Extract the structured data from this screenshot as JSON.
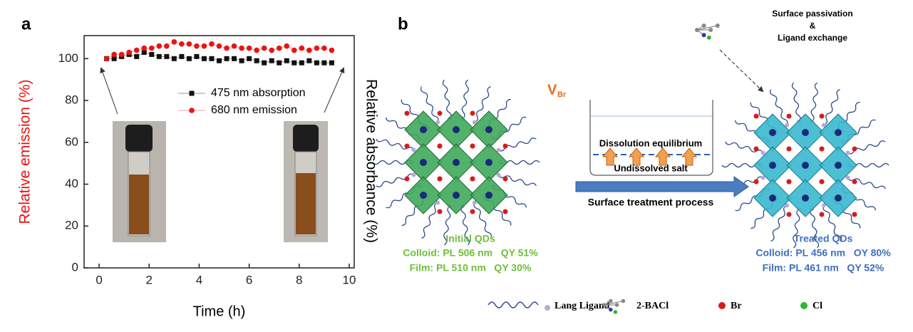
{
  "panel_labels": [
    "a",
    "b"
  ],
  "chart_data": {
    "type": "line",
    "xlabel": "Time (h)",
    "ylabel": "Relative emission (%)",
    "y2label": "Relative absorbance (%)",
    "xlim": [
      -0.6,
      10.2
    ],
    "ylim": [
      0,
      111
    ],
    "xticks": [
      0,
      2,
      4,
      6,
      8,
      10
    ],
    "yticks": [
      0,
      20,
      40,
      60,
      80,
      100
    ],
    "x": [
      0.3,
      0.6,
      0.9,
      1.2,
      1.5,
      1.8,
      2.1,
      2.4,
      2.7,
      3.0,
      3.3,
      3.6,
      3.9,
      4.2,
      4.5,
      4.8,
      5.1,
      5.4,
      5.7,
      6.0,
      6.3,
      6.6,
      6.9,
      7.2,
      7.5,
      7.8,
      8.1,
      8.4,
      8.7,
      9.0,
      9.3
    ],
    "series": [
      {
        "name": "475 nm absorption",
        "color": "#111111",
        "line_color": "#999999",
        "marker": "square",
        "values": [
          100,
          100,
          101,
          102,
          101,
          103,
          102,
          101,
          101,
          100,
          101,
          100,
          101,
          100,
          100,
          99,
          100,
          100,
          99,
          100,
          99,
          98,
          99,
          98,
          99,
          98,
          98,
          99,
          98,
          98,
          98
        ]
      },
      {
        "name": "680 nm emission",
        "color": "#ee1111",
        "line_color": "#f4a0a0",
        "marker": "circle",
        "values": [
          100,
          102,
          102,
          103,
          104,
          105,
          105,
          106,
          106,
          108,
          107,
          107,
          106,
          106,
          107,
          106,
          105,
          106,
          105,
          105,
          104,
          105,
          104,
          105,
          106,
          104,
          105,
          104,
          105,
          105,
          104
        ]
      }
    ],
    "ylabel_color": "#ee1111"
  },
  "diagram": {
    "vacancy_label": {
      "main": "V",
      "sub": "Br"
    },
    "passivation": [
      "Surface passivation",
      "&",
      "Ligand exchange"
    ],
    "beaker": [
      "Dissolution equilibrium",
      "Undissolved salt"
    ],
    "process": "Surface treatment process",
    "initial": {
      "title": "Initial QDs",
      "lines": [
        "Colloid: PL 506 nm   QY 51%",
        "Film: PL 510 nm   QY 30%"
      ]
    },
    "treated": {
      "title": "Treated QDs",
      "lines": [
        "Colloid: PL 456 nm   OY 80%",
        "Film: PL 461 nm   QY 52%"
      ]
    },
    "legend": [
      "Lang Ligand",
      "2-BACl",
      "Br",
      "Cl"
    ]
  }
}
